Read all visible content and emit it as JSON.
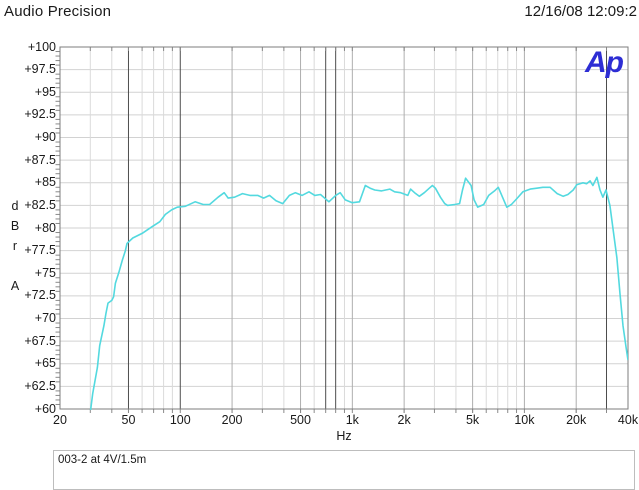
{
  "header": {
    "app_name": "Audio Precision",
    "datetime": "12/16/08 12:09:2"
  },
  "logo": {
    "text": "Ap",
    "color": "#2d2dd4"
  },
  "axes": {
    "x_label": "Hz",
    "y_unit": "dBr",
    "y_weighting": "A"
  },
  "annotation": {
    "text": "003-2 at 4V/1.5m"
  },
  "chart_data": {
    "type": "line",
    "title": "",
    "xlabel": "Hz",
    "ylabel": "dBr A",
    "x_axis": {
      "scale": "log",
      "min_hz": 20,
      "max_hz": 40000,
      "ticks": [
        {
          "f": 20,
          "label": "20"
        },
        {
          "f": 50,
          "label": "50"
        },
        {
          "f": 100,
          "label": "100"
        },
        {
          "f": 200,
          "label": "200"
        },
        {
          "f": 500,
          "label": "500"
        },
        {
          "f": 1000,
          "label": "1k"
        },
        {
          "f": 2000,
          "label": "2k"
        },
        {
          "f": 5000,
          "label": "5k"
        },
        {
          "f": 10000,
          "label": "10k"
        },
        {
          "f": 20000,
          "label": "20k"
        },
        {
          "f": 40000,
          "label": "40k"
        }
      ]
    },
    "y_axis": {
      "min": 60,
      "max": 100,
      "step": 2.5,
      "tick_labels": [
        "+100",
        "+97.5",
        "+95",
        "+92.5",
        "+90",
        "+87.5",
        "+85",
        "+82.5",
        "+80",
        "+77.5",
        "+75",
        "+72.5",
        "+70",
        "+67.5",
        "+65",
        "+62.5",
        "+60"
      ]
    },
    "grid": {
      "minor_color": "#dadada",
      "major_color": "#aeaeae",
      "dark_line_color": "#4d4d4d",
      "horizontal_color": "#d2d2d2",
      "border_color": "#7d7d7d",
      "tick_color": "#8a8a8a",
      "dark_lines_hz": [
        50,
        100,
        700,
        800,
        30000
      ]
    },
    "series": [
      {
        "name": "frequency-response-sweep",
        "color": "#53d9df",
        "points_hz_dbr": [
          [
            30,
            59.6
          ],
          [
            31,
            61.7
          ],
          [
            33,
            64.6
          ],
          [
            34,
            67.0
          ],
          [
            36,
            69.2
          ],
          [
            37,
            70.6
          ],
          [
            38,
            71.7
          ],
          [
            40,
            72.0
          ],
          [
            41,
            72.4
          ],
          [
            42,
            73.9
          ],
          [
            44,
            75.1
          ],
          [
            46,
            76.4
          ],
          [
            48,
            77.5
          ],
          [
            49,
            78.3
          ],
          [
            53,
            78.9
          ],
          [
            60,
            79.4
          ],
          [
            68,
            80.1
          ],
          [
            76,
            80.7
          ],
          [
            82,
            81.5
          ],
          [
            89,
            82.0
          ],
          [
            96,
            82.3
          ],
          [
            107,
            82.4
          ],
          [
            122,
            82.9
          ],
          [
            136,
            82.6
          ],
          [
            148,
            82.6
          ],
          [
            166,
            83.4
          ],
          [
            180,
            83.9
          ],
          [
            190,
            83.3
          ],
          [
            207,
            83.4
          ],
          [
            230,
            83.8
          ],
          [
            254,
            83.6
          ],
          [
            282,
            83.6
          ],
          [
            305,
            83.3
          ],
          [
            330,
            83.6
          ],
          [
            360,
            83.0
          ],
          [
            394,
            82.7
          ],
          [
            431,
            83.6
          ],
          [
            467,
            83.9
          ],
          [
            510,
            83.6
          ],
          [
            560,
            84.0
          ],
          [
            605,
            83.6
          ],
          [
            653,
            83.7
          ],
          [
            731,
            82.9
          ],
          [
            800,
            83.6
          ],
          [
            850,
            83.9
          ],
          [
            910,
            83.1
          ],
          [
            1000,
            82.8
          ],
          [
            1100,
            82.9
          ],
          [
            1190,
            84.7
          ],
          [
            1270,
            84.4
          ],
          [
            1350,
            84.2
          ],
          [
            1480,
            84.1
          ],
          [
            1650,
            84.3
          ],
          [
            1760,
            84.0
          ],
          [
            1910,
            83.9
          ],
          [
            2100,
            83.6
          ],
          [
            2180,
            84.3
          ],
          [
            2300,
            83.9
          ],
          [
            2450,
            83.5
          ],
          [
            2620,
            83.9
          ],
          [
            2800,
            84.4
          ],
          [
            2920,
            84.7
          ],
          [
            3040,
            84.4
          ],
          [
            3250,
            83.4
          ],
          [
            3440,
            82.7
          ],
          [
            3580,
            82.5
          ],
          [
            3930,
            82.6
          ],
          [
            4200,
            82.7
          ],
          [
            4370,
            84.2
          ],
          [
            4550,
            85.5
          ],
          [
            4900,
            84.7
          ],
          [
            5100,
            83.1
          ],
          [
            5350,
            82.3
          ],
          [
            5800,
            82.6
          ],
          [
            6200,
            83.6
          ],
          [
            6700,
            84.1
          ],
          [
            7050,
            84.5
          ],
          [
            7500,
            83.3
          ],
          [
            7900,
            82.3
          ],
          [
            8400,
            82.6
          ],
          [
            9000,
            83.2
          ],
          [
            9800,
            84.0
          ],
          [
            10800,
            84.3
          ],
          [
            11800,
            84.4
          ],
          [
            12800,
            84.5
          ],
          [
            14100,
            84.5
          ],
          [
            15500,
            83.8
          ],
          [
            16800,
            83.5
          ],
          [
            17900,
            83.7
          ],
          [
            19200,
            84.2
          ],
          [
            20200,
            84.8
          ],
          [
            21900,
            85.0
          ],
          [
            23000,
            84.9
          ],
          [
            24100,
            85.2
          ],
          [
            25000,
            84.7
          ],
          [
            26400,
            85.6
          ],
          [
            27500,
            84.2
          ],
          [
            28600,
            83.4
          ],
          [
            29800,
            84.2
          ],
          [
            31400,
            82.5
          ],
          [
            32700,
            80.0
          ],
          [
            34500,
            76.7
          ],
          [
            36000,
            72.6
          ],
          [
            37400,
            69.2
          ],
          [
            39000,
            66.8
          ],
          [
            40000,
            65.4
          ]
        ]
      }
    ]
  }
}
